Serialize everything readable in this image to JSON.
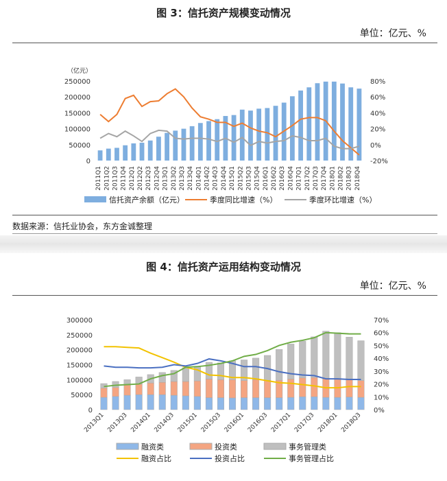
{
  "fig3": {
    "title": "图 3：信托资产规模变动情况",
    "unit": "单位：亿元、%",
    "source": "数据来源：信托业协会，东方金诚整理"
  },
  "fig4": {
    "title": "图 4：信托资产运用结构变动情况",
    "unit": "单位：亿元、%"
  },
  "chart_data": [
    {
      "type": "bar+line",
      "left_axis_unit": "（亿元）",
      "ylim": [
        0,
        250000
      ],
      "y2lim": [
        -20,
        80
      ],
      "yticks": [
        "0",
        "50000",
        "100000",
        "150000",
        "200000",
        "250000"
      ],
      "y2ticks": [
        "-20%",
        "0%",
        "20%",
        "40%",
        "60%",
        "80%"
      ],
      "categories": [
        "2011Q1",
        "2011Q2",
        "2011Q3",
        "2011Q4",
        "2012Q1",
        "2012Q2",
        "2012Q3",
        "2012Q4",
        "2013Q1",
        "2013Q2",
        "2013Q3",
        "2013Q4",
        "2014Q1",
        "2014Q2",
        "2014Q3",
        "2014Q4",
        "2015Q1",
        "2015Q2",
        "2015Q3",
        "2015Q4",
        "2016Q1",
        "2016Q2",
        "2016Q3",
        "2016Q4",
        "2017Q1",
        "2017Q2",
        "2017Q3",
        "2017Q4",
        "2018Q1",
        "2018Q2",
        "2018Q3",
        "2018Q4"
      ],
      "series": [
        {
          "name": "信托资产余额（亿元）",
          "kind": "bar",
          "axis": "left",
          "color": "#7eaedf",
          "values": [
            32000,
            37500,
            40000,
            48000,
            54000,
            56000,
            63000,
            75000,
            87000,
            94000,
            100000,
            108000,
            118000,
            124000,
            130000,
            140000,
            143000,
            160000,
            157000,
            163000,
            165000,
            172000,
            182000,
            202000,
            220000,
            230000,
            243000,
            248000,
            248000,
            242000,
            230000,
            226000
          ]
        },
        {
          "name": "季度同比增速（%）",
          "kind": "line",
          "axis": "right",
          "color": "#ed7d31",
          "values": [
            38,
            29,
            38,
            58,
            62,
            48,
            54,
            55,
            64,
            70,
            60,
            46,
            35,
            32,
            28,
            28,
            23,
            27,
            21,
            17,
            15,
            10,
            17,
            24,
            32,
            34,
            34,
            30,
            17,
            5,
            -4,
            -13
          ]
        },
        {
          "name": "季度环比增速（%）",
          "kind": "line",
          "axis": "right",
          "color": "#a5a5a5",
          "values": [
            8,
            14,
            10,
            17,
            11,
            4,
            14,
            18,
            17,
            8,
            7,
            8,
            8,
            7,
            4,
            8,
            3,
            9,
            -1,
            4,
            2,
            4,
            5,
            11,
            9,
            5,
            5,
            8,
            -2,
            -5,
            -5,
            -2
          ]
        }
      ],
      "legend": "bottom"
    },
    {
      "type": "stacked-bar+line",
      "ylim": [
        0,
        300000
      ],
      "y2lim": [
        0,
        70
      ],
      "yticks": [
        "0",
        "50000",
        "100000",
        "150000",
        "200000",
        "250000",
        "300000"
      ],
      "y2ticks": [
        "0%",
        "10%",
        "20%",
        "30%",
        "40%",
        "50%",
        "60%",
        "70%"
      ],
      "categories": [
        "2013Q1",
        "2013Q2",
        "2013Q3",
        "2013Q4",
        "2014Q1",
        "2014Q2",
        "2014Q3",
        "2014Q4",
        "2015Q1",
        "2015Q2",
        "2015Q3",
        "2015Q4",
        "2016Q1",
        "2016Q2",
        "2016Q3",
        "2016Q4",
        "2017Q1",
        "2017Q2",
        "2017Q3",
        "2017Q4",
        "2018Q1",
        "2018Q2",
        "2018Q3"
      ],
      "xtick_labels": [
        "2013Q1",
        "2013Q3",
        "2014Q1",
        "2014Q3",
        "2015Q1",
        "2015Q3",
        "2016Q1",
        "2016Q3",
        "2017Q1",
        "2017Q3",
        "2018Q1",
        "2018Q3"
      ],
      "series": [
        {
          "name": "融资类",
          "kind": "bar",
          "axis": "left",
          "color": "#8fb8e8",
          "values": [
            41000,
            44000,
            48000,
            50000,
            50000,
            50000,
            48000,
            46000,
            44000,
            40000,
            40000,
            39000,
            40000,
            40000,
            40000,
            40000,
            41000,
            43000,
            43000,
            41000,
            41000,
            42000,
            41000
          ]
        },
        {
          "name": "投资类",
          "kind": "bar",
          "axis": "left",
          "color": "#f4a582",
          "values": [
            31000,
            30000,
            34000,
            35000,
            39000,
            41000,
            46000,
            48000,
            52000,
            62000,
            60000,
            61000,
            57000,
            60000,
            58000,
            58000,
            61000,
            63000,
            64000,
            62000,
            60000,
            57000,
            56000
          ]
        },
        {
          "name": "事务管理类",
          "kind": "bar",
          "axis": "left",
          "color": "#bfbfbf",
          "values": [
            15000,
            20000,
            18000,
            24000,
            28000,
            33000,
            37000,
            46000,
            49000,
            56000,
            56000,
            63000,
            69000,
            72000,
            83000,
            103000,
            117000,
            123000,
            136000,
            159000,
            156000,
            143000,
            133000
          ]
        },
        {
          "name": "融资占比",
          "kind": "line",
          "axis": "right",
          "color": "#f2c200",
          "values": [
            49,
            49,
            48.5,
            48,
            44,
            40.5,
            37,
            33,
            31,
            27,
            26.5,
            25,
            25,
            24,
            22.5,
            21,
            20.5,
            19.5,
            18.5,
            17,
            17,
            18,
            18
          ]
        },
        {
          "name": "投资占比",
          "kind": "line",
          "axis": "right",
          "color": "#4a6fc1",
          "values": [
            34,
            33,
            33,
            32.5,
            32.5,
            33,
            35,
            34,
            36,
            39.5,
            38,
            36,
            33.5,
            33.5,
            32,
            29.5,
            28,
            27,
            26.5,
            24,
            24,
            23.5,
            23.5
          ]
        },
        {
          "name": "事务管理占比",
          "kind": "line",
          "axis": "right",
          "color": "#70ad47",
          "values": [
            18,
            19,
            19.5,
            20,
            24,
            26.5,
            28,
            33,
            33.5,
            34.5,
            36,
            38,
            41.5,
            43,
            46,
            50,
            52.5,
            54,
            56,
            60,
            59.5,
            59,
            59
          ]
        }
      ],
      "legend": "bottom"
    }
  ]
}
